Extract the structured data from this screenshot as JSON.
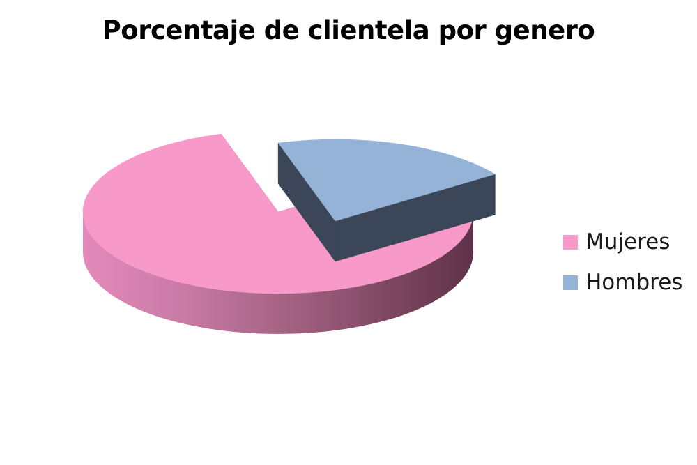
{
  "chart_data": {
    "type": "pie",
    "title": "Porcentaje de clientela por genero",
    "slices": [
      {
        "name": "Mujeres",
        "value": 80,
        "color": "#F799C9",
        "side_color": "#6E3D58"
      },
      {
        "name": "Hombres",
        "value": 20,
        "color": "#95B3D7",
        "side_color": "#3B4658"
      }
    ],
    "three_d": true,
    "exploded_slice": "Hombres",
    "legend": "right"
  }
}
